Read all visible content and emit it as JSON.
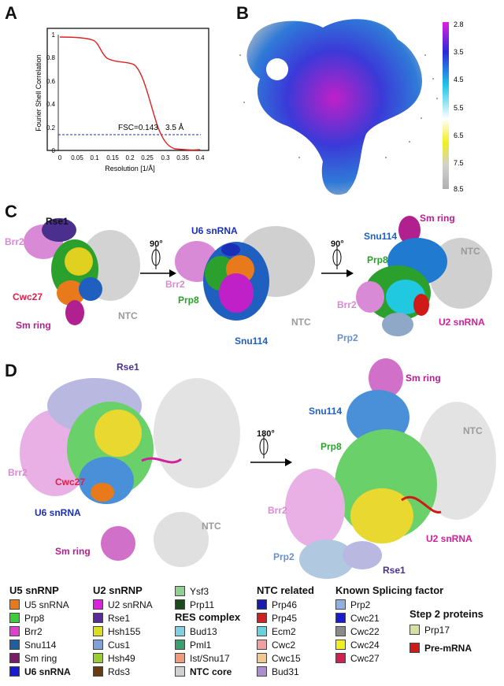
{
  "panels": {
    "a": "A",
    "b": "B",
    "c": "C",
    "d": "D"
  },
  "panel_a": {
    "ylabel": "Fourier Shell Correlation",
    "xlabel": "Resolution [1/Å]",
    "fsc_label": "FSC=0.143",
    "res_label": "3.5 Å",
    "x_ticks": [
      "0",
      "0.05",
      "0.1",
      "0.15",
      "0.2",
      "0.25",
      "0.3",
      "0.35",
      "0.4"
    ],
    "y_ticks": [
      "0",
      "0.2",
      "0.4",
      "0.6",
      "0.8",
      "1"
    ]
  },
  "panel_b": {
    "scale_ticks": [
      "2.8",
      "3.5",
      "4.5",
      "5.5",
      "6.5",
      "7.5",
      "8.5"
    ]
  },
  "panel_c": {
    "view1": {
      "rse1": "Rse1",
      "brr2": "Brr2",
      "cwc27": "Cwc27",
      "smring": "Sm ring",
      "ntc": "NTC"
    },
    "rot1": "90°",
    "view2": {
      "u6": "U6 snRNA",
      "brr2": "Brr2",
      "prp8": "Prp8",
      "ntc": "NTC",
      "snu114": "Snu114"
    },
    "rot2": "90°",
    "view3": {
      "smring": "Sm ring",
      "snu114": "Snu114",
      "prp8": "Prp8",
      "ntc": "NTC",
      "brr2": "Brr2",
      "u2": "U2 snRNA",
      "prp2": "Prp2"
    }
  },
  "panel_d": {
    "left": {
      "rse1": "Rse1",
      "brr2": "Brr2",
      "cwc27": "Cwc27",
      "u6": "U6 snRNA",
      "ntc": "NTC",
      "smring": "Sm ring"
    },
    "rot": "180°",
    "right": {
      "smring": "Sm ring",
      "snu114": "Snu114",
      "prp8": "Prp8",
      "ntc": "NTC",
      "brr2": "Brr2",
      "u2": "U2 snRNA",
      "prp2": "Prp2",
      "rse1": "Rse1"
    }
  },
  "colors": {
    "rse1": "#4a2f8f",
    "brr2": "#d98ad6",
    "cwc27": "#e0204a",
    "smring": "#b0208f",
    "ntc": "#9a9a9a",
    "u6": "#1a2fb8",
    "prp8": "#2ca02c",
    "snu114": "#1f5fbf",
    "u2": "#d0209a",
    "prp2": "#6a8fc8",
    "fsc_curve": "#e02020",
    "fsc_line": "#1a2f9a"
  },
  "legend": {
    "u5": {
      "title": "U5 snRNP",
      "items": [
        {
          "label": "U5 snRNA",
          "color": "#e87a1c"
        },
        {
          "label": "Prp8",
          "color": "#3ccc3c"
        },
        {
          "label": "Brr2",
          "color": "#e040d0"
        },
        {
          "label": "Snu114",
          "color": "#1f5f9f"
        },
        {
          "label": "Sm ring",
          "color": "#7a1a6a"
        },
        {
          "label": "U6 snRNA",
          "color": "#1a1ad0"
        }
      ]
    },
    "u2": {
      "title": "U2 snRNP",
      "items": [
        {
          "label": "U2 snRNA",
          "color": "#e020e0"
        },
        {
          "label": "Rse1",
          "color": "#5a2a9a"
        },
        {
          "label": "Hsh155",
          "color": "#dede20"
        },
        {
          "label": "Cus1",
          "color": "#7fa3d9"
        },
        {
          "label": "Hsh49",
          "color": "#9acd32"
        },
        {
          "label": "Rds3",
          "color": "#6a3a10"
        }
      ]
    },
    "misc": {
      "items_top": [
        {
          "label": "Ysf3",
          "color": "#8fcf8f"
        },
        {
          "label": "Prp11",
          "color": "#1a4a1a"
        }
      ],
      "title": "RES complex",
      "items": [
        {
          "label": "Bud13",
          "color": "#7fd0e0"
        },
        {
          "label": "Pml1",
          "color": "#3aa070"
        },
        {
          "label": "Ist/Snu17",
          "color": "#f09a7a"
        },
        {
          "label": "NTC core",
          "color": "#d0d0d0"
        }
      ]
    },
    "ntc": {
      "title": "NTC related",
      "items": [
        {
          "label": "Prp46",
          "color": "#1a1ab0"
        },
        {
          "label": "Prp45",
          "color": "#d02020"
        },
        {
          "label": "Ecm2",
          "color": "#6ad0e0"
        },
        {
          "label": "Cwc2",
          "color": "#f0a0a0"
        },
        {
          "label": "Cwc15",
          "color": "#f0c890"
        },
        {
          "label": "Bud31",
          "color": "#a98fd0"
        }
      ]
    },
    "known": {
      "title": "Known Splicing factor",
      "items": [
        {
          "label": "Prp2",
          "color": "#90b0e0"
        },
        {
          "label": "Cwc21",
          "color": "#1a1ad0"
        },
        {
          "label": "Cwc22",
          "color": "#8a8a8a"
        },
        {
          "label": "Cwc24",
          "color": "#f0f020"
        },
        {
          "label": "Cwc27",
          "color": "#d02050"
        }
      ]
    },
    "step2": {
      "title": "Step 2 proteins",
      "items": [
        {
          "label": "Prp17",
          "color": "#d8e0a0"
        }
      ],
      "premrna": {
        "label": "Pre-mRNA",
        "color": "#d01a1a"
      }
    }
  }
}
